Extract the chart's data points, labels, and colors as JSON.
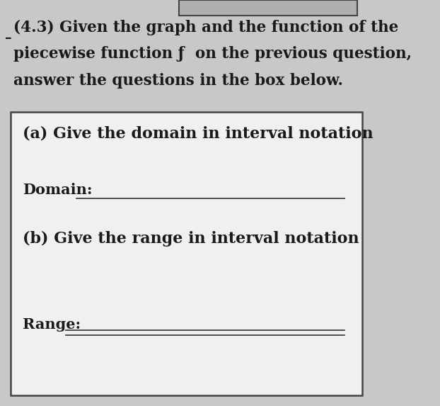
{
  "page_bg": "#c8c8c8",
  "box_bg": "#f0f0f0",
  "box_border_color": "#444444",
  "header_text_line1": "(4.3) Given the graph and the function of the",
  "header_text_line2": "piecewise function ƒ  on the previous question,",
  "header_text_line3": "answer the questions in the box below.",
  "part_a_label": "(a) Give the domain in interval notation",
  "domain_label": "Domain:",
  "part_b_label": "(b) Give the range in interval notation",
  "range_label": "Range:",
  "header_fontsize": 15.5,
  "label_fontsize": 16,
  "field_fontsize": 15,
  "text_color": "#1a1a1a",
  "line_color": "#333333",
  "top_box_bg": "#b0b0b0",
  "top_box_border": "#444444"
}
